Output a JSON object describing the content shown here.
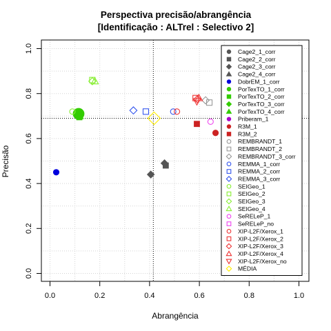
{
  "chart_data": {
    "type": "scatter",
    "title": "Perspectiva precisão/abrangência",
    "subtitle": "[Identificação : ALTrel : Selectivo 2]",
    "xlabel": "Abrangência",
    "ylabel": "Precisão",
    "xlim": [
      0,
      1
    ],
    "ylim": [
      0,
      1
    ],
    "xticks": [
      "0.0",
      "0.2",
      "0.4",
      "0.6",
      "0.8",
      "1.0"
    ],
    "yticks": [
      "0.0",
      "0.2",
      "0.4",
      "0.6",
      "0.8",
      "1.0"
    ],
    "grid": true,
    "reference_lines": {
      "x": 0.415,
      "y": 0.69
    },
    "legend_position": "right",
    "series": [
      {
        "name": "Cage2_1_corr",
        "marker": "circle",
        "color": "#555555",
        "filled": true,
        "points": []
      },
      {
        "name": "Cage2_2_corr",
        "marker": "square",
        "color": "#555555",
        "filled": true,
        "points": [
          [
            0.465,
            0.48
          ]
        ]
      },
      {
        "name": "Cage2_3_corr",
        "marker": "diamond",
        "color": "#555555",
        "filled": true,
        "points": [
          [
            0.405,
            0.44
          ],
          [
            0.46,
            0.49
          ]
        ]
      },
      {
        "name": "Cage2_4_corr",
        "marker": "triangle",
        "color": "#555555",
        "filled": true,
        "points": []
      },
      {
        "name": "DobrEM_1_corr",
        "marker": "circle",
        "color": "#0000dd",
        "filled": true,
        "points": [
          [
            0.025,
            0.45
          ]
        ]
      },
      {
        "name": "PorTexTO_1_corr",
        "marker": "circle",
        "color": "#33cc00",
        "filled": true,
        "points": [
          [
            0.115,
            0.71
          ]
        ]
      },
      {
        "name": "PorTexTO_2_corr",
        "marker": "square",
        "color": "#33cc00",
        "filled": true,
        "points": [
          [
            0.118,
            0.695
          ]
        ]
      },
      {
        "name": "PorTexTO_3_corr",
        "marker": "diamond",
        "color": "#33cc00",
        "filled": true,
        "points": [
          [
            0.112,
            0.7
          ]
        ]
      },
      {
        "name": "PorTexTO_4_corr",
        "marker": "triangle",
        "color": "#33cc00",
        "filled": true,
        "points": [
          [
            0.12,
            0.7
          ]
        ]
      },
      {
        "name": "Priberam_1",
        "marker": "circle",
        "color": "#aa00cc",
        "filled": true,
        "points": []
      },
      {
        "name": "R3M_1",
        "marker": "circle",
        "color": "#cc2222",
        "filled": true,
        "points": [
          [
            0.665,
            0.625
          ]
        ]
      },
      {
        "name": "R3M_2",
        "marker": "square",
        "color": "#cc2222",
        "filled": true,
        "points": [
          [
            0.59,
            0.665
          ]
        ]
      },
      {
        "name": "REMBRANDT_1",
        "marker": "circle",
        "color": "#999999",
        "filled": false,
        "points": []
      },
      {
        "name": "REMBRANDT_2",
        "marker": "square",
        "color": "#999999",
        "filled": false,
        "points": [
          [
            0.64,
            0.76
          ]
        ]
      },
      {
        "name": "REMBRANDT_3_corr",
        "marker": "diamond",
        "color": "#999999",
        "filled": false,
        "points": [
          [
            0.625,
            0.77
          ]
        ]
      },
      {
        "name": "REMMA_1_corr",
        "marker": "circle",
        "color": "#3355ee",
        "filled": false,
        "points": [
          [
            0.495,
            0.72
          ]
        ]
      },
      {
        "name": "REMMA_2_corr",
        "marker": "square",
        "color": "#3355ee",
        "filled": false,
        "points": [
          [
            0.385,
            0.72
          ]
        ]
      },
      {
        "name": "REMMA_3_corr",
        "marker": "diamond",
        "color": "#3355ee",
        "filled": false,
        "points": [
          [
            0.335,
            0.725
          ]
        ]
      },
      {
        "name": "SEIGeo_1",
        "marker": "circle",
        "color": "#88ee33",
        "filled": false,
        "points": [
          [
            0.09,
            0.72
          ]
        ]
      },
      {
        "name": "SEIGeo_2",
        "marker": "square",
        "color": "#88ee33",
        "filled": false,
        "points": [
          [
            0.17,
            0.86
          ]
        ]
      },
      {
        "name": "SEIGeo_3",
        "marker": "diamond",
        "color": "#88ee33",
        "filled": false,
        "points": [
          [
            0.17,
            0.855
          ]
        ]
      },
      {
        "name": "SEIGeo_4",
        "marker": "triangle",
        "color": "#88ee33",
        "filled": false,
        "points": [
          [
            0.18,
            0.855
          ]
        ]
      },
      {
        "name": "SeRELeP_1",
        "marker": "circle",
        "color": "#ee44ee",
        "filled": false,
        "points": [
          [
            0.645,
            0.675
          ]
        ]
      },
      {
        "name": "SeRELeP_no",
        "marker": "square",
        "color": "#ee44ee",
        "filled": false,
        "points": []
      },
      {
        "name": "XIP-L2F/Xerox_1",
        "marker": "circle",
        "color": "#ee3333",
        "filled": false,
        "points": [
          [
            0.51,
            0.72
          ]
        ]
      },
      {
        "name": "XIP-L2F/Xerox_2",
        "marker": "square",
        "color": "#ee3333",
        "filled": false,
        "points": [
          [
            0.585,
            0.78
          ]
        ]
      },
      {
        "name": "XIP-L2F/Xerox_3",
        "marker": "diamond",
        "color": "#ee3333",
        "filled": false,
        "points": [
          [
            0.592,
            0.775
          ]
        ]
      },
      {
        "name": "XIP-L2F/Xerox_4",
        "marker": "triangle",
        "color": "#ee3333",
        "filled": false,
        "points": [
          [
            0.598,
            0.78
          ]
        ]
      },
      {
        "name": "XIP-L2F/Xerox_no",
        "marker": "triangle-down",
        "color": "#ee3333",
        "filled": false,
        "points": [
          [
            0.59,
            0.765
          ]
        ]
      },
      {
        "name": "MÉDIA",
        "marker": "diamond",
        "color": "#ffee00",
        "filled": false,
        "points": [
          [
            0.418,
            0.69
          ]
        ]
      }
    ]
  }
}
